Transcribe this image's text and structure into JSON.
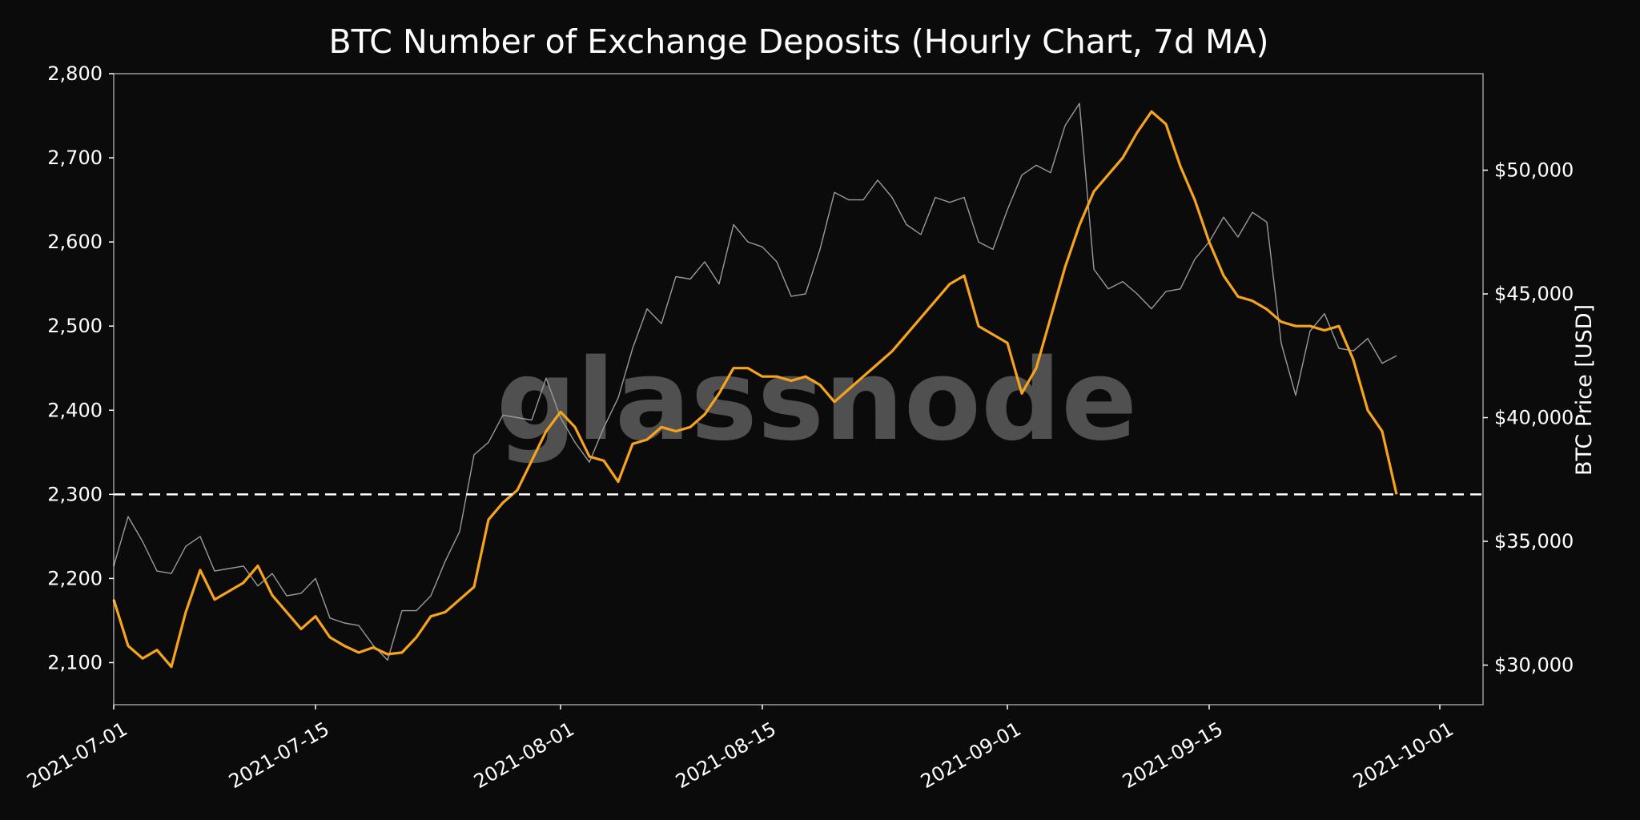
{
  "chart_data": {
    "type": "line",
    "title": "BTC Number of Exchange Deposits (Hourly Chart, 7d MA)",
    "watermark": "glassnode",
    "background_color": "#0b0b0b",
    "y_left": {
      "ylim": [
        2050,
        2800
      ],
      "ticks": [
        "2,100",
        "2,200",
        "2,300",
        "2,400",
        "2,500",
        "2,600",
        "2,700",
        "2,800"
      ],
      "tick_values": [
        2100,
        2200,
        2300,
        2400,
        2500,
        2600,
        2700,
        2800
      ]
    },
    "y_right": {
      "label": "BTC Price [USD]",
      "ylim": [
        28400,
        53900
      ],
      "ticks": [
        "$30,000",
        "$35,000",
        "$40,000",
        "$45,000",
        "$50,000"
      ],
      "tick_values": [
        30000,
        35000,
        40000,
        45000,
        50000
      ]
    },
    "x": {
      "ticks": [
        "2021-07-01",
        "2021-07-15",
        "2021-08-01",
        "2021-08-15",
        "2021-09-01",
        "2021-09-15",
        "2021-10-01"
      ],
      "range": [
        "2021-07-01",
        "2021-10-04"
      ]
    },
    "reference_line": {
      "value": 2300,
      "style": "dashed",
      "color": "#ffffff"
    },
    "grid": false,
    "series": [
      {
        "color": "#f7a41d",
        "axis": "left",
        "x": [
          "2021-07-01",
          "2021-07-02",
          "2021-07-03",
          "2021-07-04",
          "2021-07-05",
          "2021-07-06",
          "2021-07-07",
          "2021-07-08",
          "2021-07-09",
          "2021-07-10",
          "2021-07-11",
          "2021-07-12",
          "2021-07-13",
          "2021-07-14",
          "2021-07-15",
          "2021-07-16",
          "2021-07-17",
          "2021-07-18",
          "2021-07-19",
          "2021-07-20",
          "2021-07-21",
          "2021-07-22",
          "2021-07-23",
          "2021-07-24",
          "2021-07-25",
          "2021-07-26",
          "2021-07-27",
          "2021-07-28",
          "2021-07-29",
          "2021-07-30",
          "2021-07-31",
          "2021-08-01",
          "2021-08-02",
          "2021-08-03",
          "2021-08-04",
          "2021-08-05",
          "2021-08-06",
          "2021-08-07",
          "2021-08-08",
          "2021-08-09",
          "2021-08-10",
          "2021-08-11",
          "2021-08-12",
          "2021-08-13",
          "2021-08-14",
          "2021-08-15",
          "2021-08-16",
          "2021-08-17",
          "2021-08-18",
          "2021-08-19",
          "2021-08-20",
          "2021-08-21",
          "2021-08-22",
          "2021-08-23",
          "2021-08-24",
          "2021-08-25",
          "2021-08-26",
          "2021-08-27",
          "2021-08-28",
          "2021-08-29",
          "2021-08-30",
          "2021-08-31",
          "2021-09-01",
          "2021-09-02",
          "2021-09-03",
          "2021-09-04",
          "2021-09-05",
          "2021-09-06",
          "2021-09-07",
          "2021-09-08",
          "2021-09-09",
          "2021-09-10",
          "2021-09-11",
          "2021-09-12",
          "2021-09-13",
          "2021-09-14",
          "2021-09-15",
          "2021-09-16",
          "2021-09-17",
          "2021-09-18",
          "2021-09-19",
          "2021-09-20",
          "2021-09-21",
          "2021-09-22",
          "2021-09-23",
          "2021-09-24",
          "2021-09-25",
          "2021-09-26",
          "2021-09-27",
          "2021-09-28"
        ],
        "values": [
          2175,
          2120,
          2105,
          2115,
          2095,
          2160,
          2210,
          2175,
          2185,
          2195,
          2215,
          2180,
          2160,
          2140,
          2155,
          2130,
          2120,
          2112,
          2118,
          2110,
          2112,
          2130,
          2155,
          2160,
          2175,
          2190,
          2270,
          2290,
          2305,
          2340,
          2375,
          2398,
          2380,
          2345,
          2340,
          2315,
          2360,
          2365,
          2380,
          2375,
          2380,
          2395,
          2420,
          2450,
          2450,
          2440,
          2440,
          2435,
          2440,
          2430,
          2410,
          2425,
          2440,
          2455,
          2470,
          2490,
          2510,
          2530,
          2550,
          2560,
          2500,
          2490,
          2480,
          2420,
          2450,
          2510,
          2570,
          2620,
          2660,
          2680,
          2700,
          2730,
          2755,
          2740,
          2690,
          2650,
          2600,
          2560,
          2535,
          2530,
          2520,
          2505,
          2500,
          2500,
          2495,
          2500,
          2460,
          2400,
          2375,
          2300
        ]
      },
      {
        "color": "#9a9a9a",
        "axis": "right",
        "x": [
          "2021-07-01",
          "2021-07-02",
          "2021-07-03",
          "2021-07-04",
          "2021-07-05",
          "2021-07-06",
          "2021-07-07",
          "2021-07-08",
          "2021-07-09",
          "2021-07-10",
          "2021-07-11",
          "2021-07-12",
          "2021-07-13",
          "2021-07-14",
          "2021-07-15",
          "2021-07-16",
          "2021-07-17",
          "2021-07-18",
          "2021-07-19",
          "2021-07-20",
          "2021-07-21",
          "2021-07-22",
          "2021-07-23",
          "2021-07-24",
          "2021-07-25",
          "2021-07-26",
          "2021-07-27",
          "2021-07-28",
          "2021-07-29",
          "2021-07-30",
          "2021-07-31",
          "2021-08-01",
          "2021-08-02",
          "2021-08-03",
          "2021-08-04",
          "2021-08-05",
          "2021-08-06",
          "2021-08-07",
          "2021-08-08",
          "2021-08-09",
          "2021-08-10",
          "2021-08-11",
          "2021-08-12",
          "2021-08-13",
          "2021-08-14",
          "2021-08-15",
          "2021-08-16",
          "2021-08-17",
          "2021-08-18",
          "2021-08-19",
          "2021-08-20",
          "2021-08-21",
          "2021-08-22",
          "2021-08-23",
          "2021-08-24",
          "2021-08-25",
          "2021-08-26",
          "2021-08-27",
          "2021-08-28",
          "2021-08-29",
          "2021-08-30",
          "2021-08-31",
          "2021-09-01",
          "2021-09-02",
          "2021-09-03",
          "2021-09-04",
          "2021-09-05",
          "2021-09-06",
          "2021-09-07",
          "2021-09-08",
          "2021-09-09",
          "2021-09-10",
          "2021-09-11",
          "2021-09-12",
          "2021-09-13",
          "2021-09-14",
          "2021-09-15",
          "2021-09-16",
          "2021-09-17",
          "2021-09-18",
          "2021-09-19",
          "2021-09-20",
          "2021-09-21",
          "2021-09-22",
          "2021-09-23",
          "2021-09-24",
          "2021-09-25",
          "2021-09-26",
          "2021-09-27",
          "2021-09-28"
        ],
        "values": [
          34000,
          36000,
          35000,
          33800,
          33700,
          34800,
          35200,
          33800,
          33900,
          34000,
          33200,
          33700,
          32800,
          32900,
          33500,
          31900,
          31700,
          31600,
          30800,
          30200,
          32200,
          32200,
          32800,
          34200,
          35400,
          38500,
          39000,
          40100,
          40000,
          39900,
          41600,
          40000,
          39000,
          38200,
          39600,
          40800,
          42800,
          44400,
          43800,
          45700,
          45600,
          46300,
          45400,
          47800,
          47100,
          46900,
          46300,
          44900,
          45000,
          46800,
          49100,
          48800,
          48800,
          49600,
          48900,
          47800,
          47400,
          48900,
          48700,
          48900,
          47100,
          46800,
          48400,
          49800,
          50200,
          49900,
          51800,
          52700,
          46000,
          45200,
          45500,
          45000,
          44400,
          45100,
          45200,
          46400,
          47100,
          48100,
          47300,
          48300,
          47900,
          43000,
          40900,
          43500,
          44200,
          42800,
          42700,
          43200,
          42200,
          42500
        ]
      }
    ]
  }
}
